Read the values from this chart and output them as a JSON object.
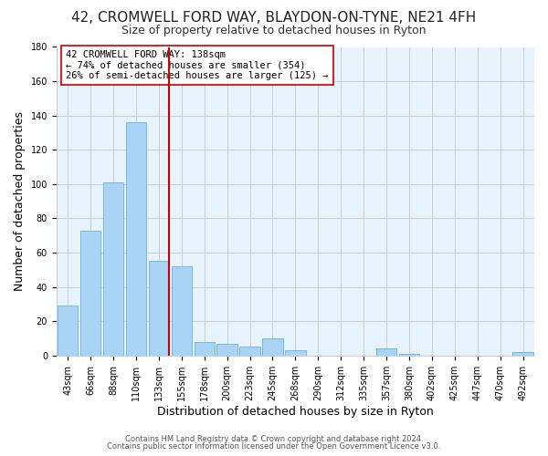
{
  "title": "42, CROMWELL FORD WAY, BLAYDON-ON-TYNE, NE21 4FH",
  "subtitle": "Size of property relative to detached houses in Ryton",
  "xlabel": "Distribution of detached houses by size in Ryton",
  "ylabel": "Number of detached properties",
  "bar_color": "#aad4f5",
  "bar_edge_color": "#6ab0e0",
  "categories": [
    "43sqm",
    "66sqm",
    "88sqm",
    "110sqm",
    "133sqm",
    "155sqm",
    "178sqm",
    "200sqm",
    "223sqm",
    "245sqm",
    "268sqm",
    "290sqm",
    "312sqm",
    "335sqm",
    "357sqm",
    "380sqm",
    "402sqm",
    "425sqm",
    "447sqm",
    "470sqm",
    "492sqm"
  ],
  "values": [
    29,
    73,
    101,
    136,
    55,
    52,
    8,
    7,
    5,
    10,
    3,
    0,
    0,
    0,
    4,
    1,
    0,
    0,
    0,
    0,
    2
  ],
  "vline_color": "#cc0000",
  "annotation_text": "42 CROMWELL FORD WAY: 138sqm\n← 74% of detached houses are smaller (354)\n26% of semi-detached houses are larger (125) →",
  "annotation_box_color": "white",
  "annotation_box_edge": "#cc0000",
  "ylim": [
    0,
    180
  ],
  "yticks": [
    0,
    20,
    40,
    60,
    80,
    100,
    120,
    140,
    160,
    180
  ],
  "footer1": "Contains HM Land Registry data © Crown copyright and database right 2024.",
  "footer2": "Contains public sector information licensed under the Open Government Licence v3.0.",
  "background_color": "#ffffff",
  "grid_color": "#cccccc",
  "title_fontsize": 11,
  "subtitle_fontsize": 9,
  "axis_label_fontsize": 9,
  "tick_fontsize": 7,
  "annotation_fontsize": 7.5,
  "footer_fontsize": 6
}
